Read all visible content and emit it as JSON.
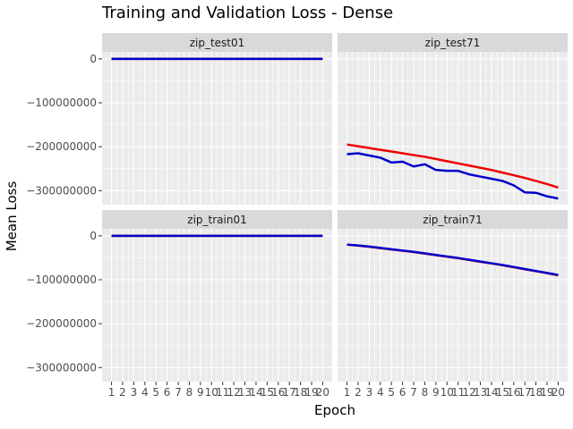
{
  "chart_data": {
    "type": "line",
    "title": "Training and Validation Loss - Dense",
    "xlabel": "Epoch",
    "ylabel": "Mean Loss",
    "x": [
      1,
      2,
      3,
      4,
      5,
      6,
      7,
      8,
      9,
      10,
      11,
      12,
      13,
      14,
      15,
      16,
      17,
      18,
      19,
      20
    ],
    "xlim": [
      0.15,
      20.85
    ],
    "ylim": [
      -332000000,
      16000000
    ],
    "y_ticks": [
      0,
      -100000000,
      -200000000,
      -300000000
    ],
    "y_tick_labels": [
      "0",
      "−100000000",
      "−200000000",
      "−300000000"
    ],
    "x_tick_labels": [
      "1",
      "2",
      "3",
      "4",
      "5",
      "6",
      "7",
      "8",
      "9",
      "10",
      "11",
      "12",
      "13",
      "14",
      "15",
      "16",
      "17",
      "18",
      "19",
      "20"
    ],
    "grid": true,
    "colors": {
      "red_series": "#ee0000",
      "blue_series": "#0000cc"
    },
    "facets": [
      {
        "label": "zip_test01",
        "series": [
          {
            "color": "#ee0000",
            "values": [
              0,
              0,
              0,
              0,
              0,
              0,
              0,
              0,
              0,
              0,
              0,
              0,
              0,
              0,
              0,
              0,
              0,
              0,
              0,
              0
            ]
          },
          {
            "color": "#0000cc",
            "values": [
              0,
              0,
              0,
              0,
              0,
              0,
              0,
              0,
              0,
              0,
              0,
              0,
              0,
              0,
              0,
              0,
              0,
              0,
              0,
              0
            ]
          }
        ]
      },
      {
        "label": "zip_test71",
        "series": [
          {
            "color": "#ee0000",
            "values": [
              -195000000,
              -199000000,
              -203000000,
              -207000000,
              -211000000,
              -215000000,
              -219000000,
              -223000000,
              -228000000,
              -233000000,
              -238000000,
              -243000000,
              -248000000,
              -253000000,
              -259000000,
              -265000000,
              -271000000,
              -278000000,
              -285000000,
              -293000000
            ]
          },
          {
            "color": "#0000cc",
            "values": [
              -217000000,
              -215000000,
              -220000000,
              -225000000,
              -236000000,
              -234000000,
              -245000000,
              -240000000,
              -253000000,
              -255000000,
              -255000000,
              -263000000,
              -268000000,
              -273000000,
              -278000000,
              -288000000,
              -304000000,
              -305000000,
              -313000000,
              -318000000
            ]
          }
        ]
      },
      {
        "label": "zip_train01",
        "series": [
          {
            "color": "#ee0000",
            "values": [
              0,
              0,
              0,
              0,
              0,
              0,
              0,
              0,
              0,
              0,
              0,
              0,
              0,
              0,
              0,
              0,
              0,
              0,
              0,
              0
            ]
          },
          {
            "color": "#0000cc",
            "values": [
              0,
              0,
              0,
              0,
              0,
              0,
              0,
              0,
              0,
              0,
              0,
              0,
              0,
              0,
              0,
              0,
              0,
              0,
              0,
              0
            ]
          }
        ]
      },
      {
        "label": "zip_train71",
        "series": [
          {
            "color": "#ee0000",
            "values": [
              -20000000,
              -22500000,
              -25000000,
              -28000000,
              -31000000,
              -34000000,
              -37000000,
              -40500000,
              -44000000,
              -47500000,
              -51000000,
              -55000000,
              -59000000,
              -63000000,
              -67000000,
              -71500000,
              -76000000,
              -80500000,
              -85000000,
              -90000000
            ]
          },
          {
            "color": "#0000cc",
            "values": [
              -20000000,
              -22000000,
              -24500000,
              -27500000,
              -30500000,
              -33500000,
              -36500000,
              -40000000,
              -43500000,
              -47000000,
              -50500000,
              -54500000,
              -58500000,
              -62500000,
              -66500000,
              -71000000,
              -75500000,
              -80000000,
              -84500000,
              -89000000
            ]
          }
        ]
      }
    ]
  }
}
